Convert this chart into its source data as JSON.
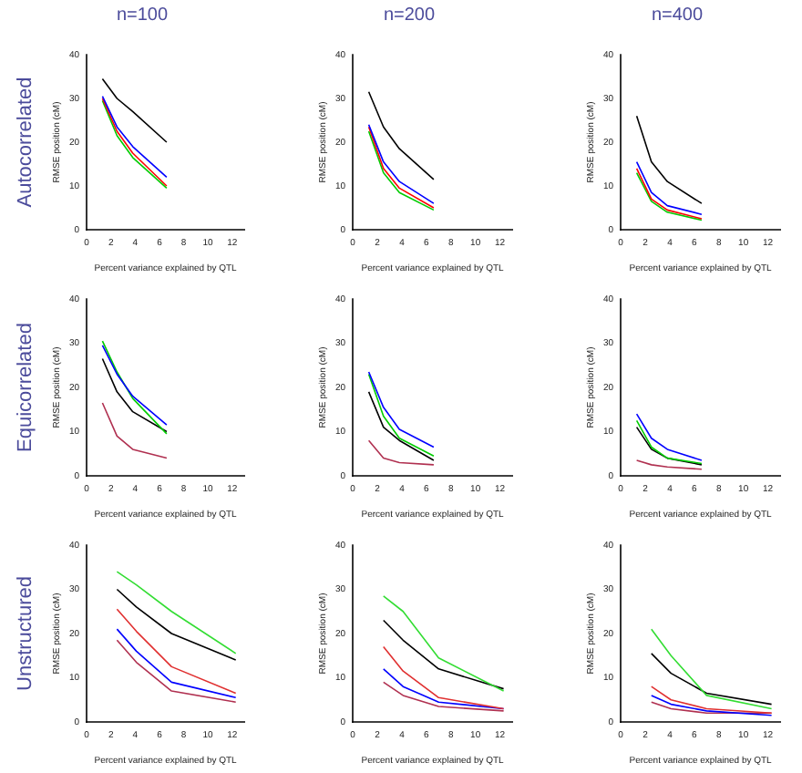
{
  "chart_data": [
    {
      "type": "line",
      "title": "n=100",
      "annotations": [
        "Autocorrelated"
      ],
      "xlabel": "Percent variance explained by QTL",
      "ylabel": "RMSE position (cM)",
      "x": [
        1.3,
        2.5,
        3.8,
        6.6
      ],
      "xlim": [
        0,
        13
      ],
      "xticks": [
        0,
        2,
        4,
        6,
        8,
        10,
        12
      ],
      "ylim": [
        0,
        40
      ],
      "yticks": [
        0,
        10,
        20,
        30,
        40
      ],
      "series": [
        {
          "color": "#000000",
          "values": [
            34.5,
            30,
            27,
            20
          ]
        },
        {
          "color": "#0000ff",
          "values": [
            30.5,
            23.5,
            19,
            12
          ]
        },
        {
          "color": "#ff0000",
          "values": [
            30,
            22.5,
            17.5,
            10
          ]
        },
        {
          "color": "#00cc00",
          "values": [
            29.5,
            21.5,
            16.5,
            9.5
          ]
        }
      ]
    },
    {
      "type": "line",
      "title": "n=200",
      "xlabel": "Percent variance explained by QTL",
      "ylabel": "RMSE position (cM)",
      "x": [
        1.3,
        2.5,
        3.8,
        6.6
      ],
      "xlim": [
        0,
        13
      ],
      "xticks": [
        0,
        2,
        4,
        6,
        8,
        10,
        12
      ],
      "ylim": [
        0,
        40
      ],
      "yticks": [
        0,
        10,
        20,
        30,
        40
      ],
      "series": [
        {
          "color": "#000000",
          "values": [
            31.5,
            23.5,
            18.5,
            11.5
          ]
        },
        {
          "color": "#0000ff",
          "values": [
            24,
            15.5,
            11,
            6
          ]
        },
        {
          "color": "#ff0000",
          "values": [
            23.5,
            14,
            9.5,
            5
          ]
        },
        {
          "color": "#00cc00",
          "values": [
            22.5,
            13,
            8.5,
            4.5
          ]
        }
      ]
    },
    {
      "type": "line",
      "title": "n=400",
      "xlabel": "Percent variance explained by QTL",
      "ylabel": "RMSE position (cM)",
      "x": [
        1.3,
        2.5,
        3.8,
        6.6
      ],
      "xlim": [
        0,
        13
      ],
      "xticks": [
        0,
        2,
        4,
        6,
        8,
        10,
        12
      ],
      "ylim": [
        0,
        40
      ],
      "yticks": [
        0,
        10,
        20,
        30,
        40
      ],
      "series": [
        {
          "color": "#000000",
          "values": [
            26,
            15.5,
            11,
            6
          ]
        },
        {
          "color": "#0000ff",
          "values": [
            15.5,
            8.5,
            5.5,
            3.5
          ]
        },
        {
          "color": "#ff0000",
          "values": [
            14,
            7,
            4.5,
            2.5
          ]
        },
        {
          "color": "#00cc00",
          "values": [
            13,
            6.5,
            4,
            2.2
          ]
        }
      ]
    },
    {
      "type": "line",
      "annotations": [
        "Equicorrelated"
      ],
      "xlabel": "Percent variance explained by QTL",
      "ylabel": "RMSE position (cM)",
      "x": [
        1.3,
        2.5,
        3.8,
        6.6
      ],
      "xlim": [
        0,
        13
      ],
      "xticks": [
        0,
        2,
        4,
        6,
        8,
        10,
        12
      ],
      "ylim": [
        0,
        40
      ],
      "yticks": [
        0,
        10,
        20,
        30,
        40
      ],
      "series": [
        {
          "color": "#0000ff",
          "values": [
            29.5,
            23,
            18,
            11.5
          ]
        },
        {
          "color": "#00cc00",
          "values": [
            30.5,
            23.5,
            17.5,
            9.5
          ]
        },
        {
          "color": "#000000",
          "values": [
            26.5,
            19,
            14.5,
            10
          ]
        },
        {
          "color": "#b03050",
          "values": [
            16.5,
            9,
            6,
            4
          ]
        }
      ]
    },
    {
      "type": "line",
      "xlabel": "Percent variance explained by QTL",
      "ylabel": "RMSE position (cM)",
      "x": [
        1.3,
        2.5,
        3.8,
        6.6
      ],
      "xlim": [
        0,
        13
      ],
      "xticks": [
        0,
        2,
        4,
        6,
        8,
        10,
        12
      ],
      "ylim": [
        0,
        40
      ],
      "yticks": [
        0,
        10,
        20,
        30,
        40
      ],
      "series": [
        {
          "color": "#0000ff",
          "values": [
            23.5,
            15.5,
            10.5,
            6.5
          ]
        },
        {
          "color": "#00cc00",
          "values": [
            23,
            13.5,
            8.5,
            4.5
          ]
        },
        {
          "color": "#000000",
          "values": [
            19,
            11,
            8,
            3.5
          ]
        },
        {
          "color": "#b03050",
          "values": [
            8,
            4,
            3,
            2.5
          ]
        }
      ]
    },
    {
      "type": "line",
      "xlabel": "Percent variance explained by QTL",
      "ylabel": "RMSE position (cM)",
      "x": [
        1.3,
        2.5,
        3.8,
        6.6
      ],
      "xlim": [
        0,
        13
      ],
      "xticks": [
        0,
        2,
        4,
        6,
        8,
        10,
        12
      ],
      "ylim": [
        0,
        40
      ],
      "yticks": [
        0,
        10,
        20,
        30,
        40
      ],
      "series": [
        {
          "color": "#0000ff",
          "values": [
            14,
            8.5,
            6,
            3.5
          ]
        },
        {
          "color": "#00cc00",
          "values": [
            12.5,
            6.5,
            4,
            2.8
          ]
        },
        {
          "color": "#000000",
          "values": [
            11,
            6,
            4,
            2.5
          ]
        },
        {
          "color": "#b03050",
          "values": [
            3.5,
            2.5,
            2,
            1.5
          ]
        }
      ]
    },
    {
      "type": "line",
      "annotations": [
        "Unstructured"
      ],
      "xlabel": "Percent variance explained by QTL",
      "ylabel": "RMSE position (cM)",
      "x": [
        2.5,
        4.1,
        7,
        12.3
      ],
      "xlim": [
        0,
        13
      ],
      "xticks": [
        0,
        2,
        4,
        6,
        8,
        10,
        12
      ],
      "ylim": [
        0,
        40
      ],
      "yticks": [
        0,
        10,
        20,
        30,
        40
      ],
      "series": [
        {
          "color": "#33dd33",
          "values": [
            34,
            31,
            25,
            15.5
          ]
        },
        {
          "color": "#000000",
          "values": [
            30,
            26,
            20,
            14
          ]
        },
        {
          "color": "#e03030",
          "values": [
            25.5,
            20.5,
            12.5,
            6.5
          ]
        },
        {
          "color": "#0000ff",
          "values": [
            21,
            16,
            9,
            5.5
          ]
        },
        {
          "color": "#b03050",
          "values": [
            18.5,
            13.5,
            7,
            4.5
          ]
        }
      ]
    },
    {
      "type": "line",
      "xlabel": "Percent variance explained by QTL",
      "ylabel": "RMSE position (cM)",
      "x": [
        2.5,
        4.1,
        7,
        12.3
      ],
      "xlim": [
        0,
        13
      ],
      "xticks": [
        0,
        2,
        4,
        6,
        8,
        10,
        12
      ],
      "ylim": [
        0,
        40
      ],
      "yticks": [
        0,
        10,
        20,
        30,
        40
      ],
      "series": [
        {
          "color": "#33dd33",
          "values": [
            28.5,
            25,
            14.5,
            7
          ]
        },
        {
          "color": "#000000",
          "values": [
            23,
            18.5,
            12,
            7.5
          ]
        },
        {
          "color": "#e03030",
          "values": [
            17,
            11.5,
            5.5,
            3
          ]
        },
        {
          "color": "#0000ff",
          "values": [
            12,
            8,
            4.5,
            3
          ]
        },
        {
          "color": "#b03050",
          "values": [
            9,
            6,
            3.5,
            2.5
          ]
        }
      ]
    },
    {
      "type": "line",
      "xlabel": "Percent variance explained by QTL",
      "ylabel": "RMSE position (cM)",
      "x": [
        2.5,
        4.1,
        7,
        12.3
      ],
      "xlim": [
        0,
        13
      ],
      "xticks": [
        0,
        2,
        4,
        6,
        8,
        10,
        12
      ],
      "ylim": [
        0,
        40
      ],
      "yticks": [
        0,
        10,
        20,
        30,
        40
      ],
      "series": [
        {
          "color": "#33dd33",
          "values": [
            21,
            15,
            6,
            3
          ]
        },
        {
          "color": "#000000",
          "values": [
            15.5,
            11,
            6.5,
            4
          ]
        },
        {
          "color": "#e03030",
          "values": [
            8,
            5,
            3,
            2
          ]
        },
        {
          "color": "#0000ff",
          "values": [
            6,
            4,
            2.5,
            1.5
          ]
        },
        {
          "color": "#b03050",
          "values": [
            4.5,
            3,
            2,
            2
          ]
        }
      ]
    }
  ]
}
